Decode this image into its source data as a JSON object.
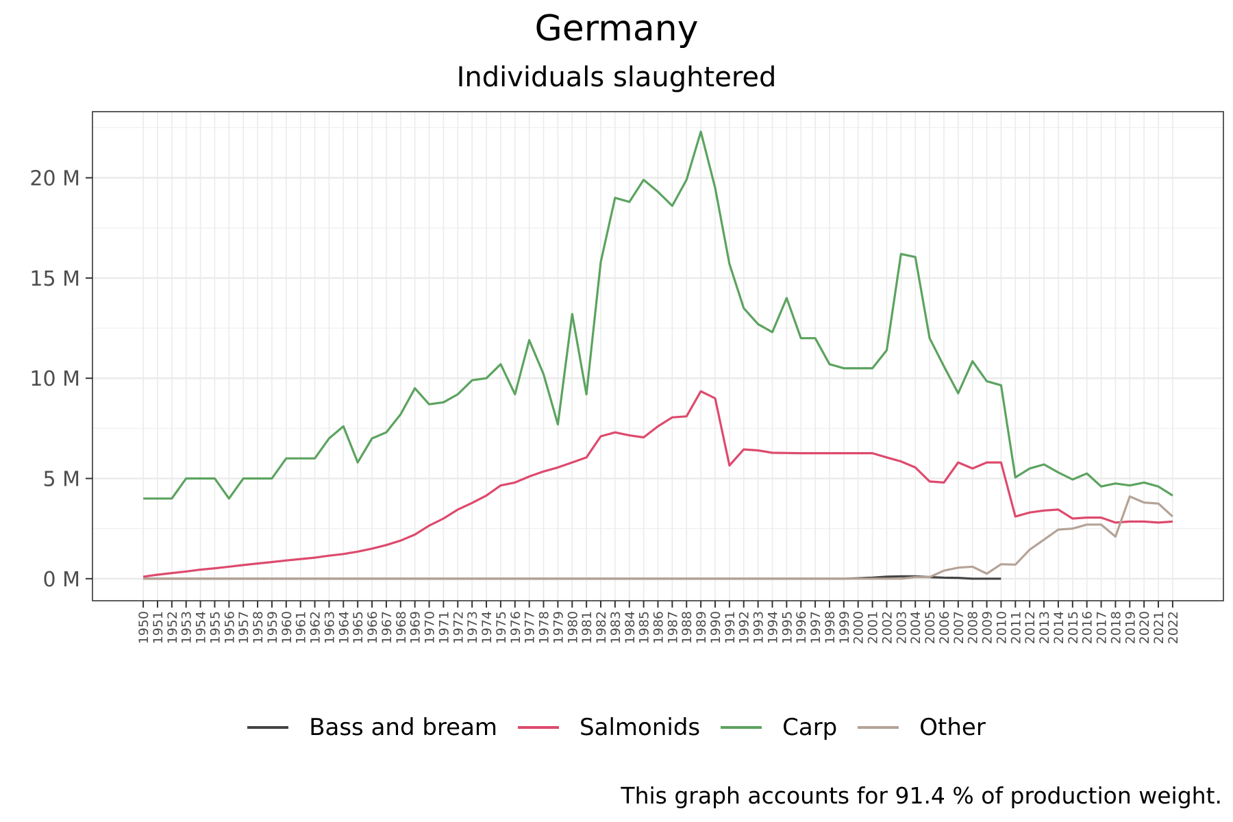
{
  "chart_data": {
    "type": "line",
    "title": "Germany",
    "subtitle": "Individuals slaughtered",
    "caption": "This graph accounts for 91.4 % of production weight.",
    "ylim": [
      -1.1,
      23.3
    ],
    "yticks": [
      0,
      5,
      10,
      15,
      20
    ],
    "ytick_labels": [
      "0 M",
      "5 M",
      "10 M",
      "15 M",
      "20 M"
    ],
    "grid": true,
    "legend_position": "bottom",
    "x": [
      1950,
      1951,
      1952,
      1953,
      1954,
      1955,
      1956,
      1957,
      1958,
      1959,
      1960,
      1961,
      1962,
      1963,
      1964,
      1965,
      1966,
      1967,
      1968,
      1969,
      1970,
      1971,
      1972,
      1973,
      1974,
      1975,
      1976,
      1977,
      1978,
      1979,
      1980,
      1981,
      1982,
      1983,
      1984,
      1985,
      1986,
      1987,
      1988,
      1989,
      1990,
      1991,
      1992,
      1993,
      1994,
      1995,
      1996,
      1997,
      1998,
      1999,
      2000,
      2001,
      2002,
      2003,
      2004,
      2005,
      2006,
      2007,
      2008,
      2009,
      2010,
      2011,
      2012,
      2013,
      2014,
      2015,
      2016,
      2017,
      2018,
      2019,
      2020,
      2021,
      2022
    ],
    "series": [
      {
        "name": "Bass and bream",
        "color": "#444444",
        "x": [
          1950,
          1951,
          1952,
          1953,
          1954,
          1955,
          1956,
          1957,
          1958,
          1959,
          1960,
          1961,
          1962,
          1963,
          1964,
          1965,
          1966,
          1967,
          1968,
          1969,
          1970,
          1971,
          1972,
          1973,
          1974,
          1975,
          1976,
          1977,
          1978,
          1979,
          1980,
          1981,
          1982,
          1983,
          1984,
          1985,
          1986,
          1987,
          1988,
          1989,
          1990,
          1991,
          1992,
          1993,
          1994,
          1995,
          1996,
          1997,
          1998,
          1999,
          2000,
          2001,
          2002,
          2003,
          2004,
          2005,
          2006,
          2007,
          2008,
          2009,
          2010
        ],
        "values": [
          0,
          0,
          0,
          0,
          0,
          0,
          0,
          0,
          0,
          0,
          0,
          0,
          0,
          0,
          0,
          0,
          0,
          0,
          0,
          0,
          0,
          0,
          0,
          0,
          0,
          0,
          0,
          0,
          0,
          0,
          0,
          0,
          0,
          0,
          0,
          0,
          0,
          0,
          0,
          0,
          0,
          0,
          0,
          0,
          0,
          0,
          0,
          0,
          0,
          0,
          0.02,
          0.05,
          0.1,
          0.12,
          0.12,
          0.08,
          0.05,
          0.04,
          0.0,
          0.0,
          0.0
        ]
      },
      {
        "name": "Salmonids",
        "color": "#dd4a6d",
        "x": [
          1950,
          1951,
          1952,
          1953,
          1954,
          1955,
          1956,
          1957,
          1958,
          1959,
          1960,
          1961,
          1962,
          1963,
          1964,
          1965,
          1966,
          1967,
          1968,
          1969,
          1970,
          1971,
          1972,
          1973,
          1974,
          1975,
          1976,
          1977,
          1978,
          1979,
          1980,
          1981,
          1982,
          1983,
          1984,
          1985,
          1986,
          1987,
          1988,
          1989,
          1990,
          1991,
          1992,
          1993,
          1994,
          1995,
          1996,
          1997,
          1998,
          1999,
          2000,
          2001,
          2002,
          2003,
          2004,
          2005,
          2006,
          2007,
          2008,
          2009,
          2010,
          2011,
          2012,
          2013,
          2014,
          2015,
          2016,
          2017,
          2018,
          2019,
          2020,
          2021,
          2022
        ],
        "values": [
          0.1,
          0.2,
          0.28,
          0.36,
          0.45,
          0.52,
          0.6,
          0.68,
          0.76,
          0.83,
          0.91,
          0.98,
          1.05,
          1.15,
          1.23,
          1.35,
          1.5,
          1.68,
          1.9,
          2.2,
          2.65,
          3.0,
          3.45,
          3.78,
          4.15,
          4.65,
          4.8,
          5.1,
          5.35,
          5.55,
          5.8,
          6.05,
          7.1,
          7.3,
          7.15,
          7.05,
          7.6,
          8.05,
          8.1,
          9.35,
          9.0,
          5.65,
          6.45,
          6.4,
          6.28,
          6.27,
          6.26,
          6.26,
          6.26,
          6.26,
          6.26,
          6.26,
          6.05,
          5.85,
          5.55,
          4.85,
          4.8,
          5.8,
          5.5,
          5.8,
          5.8,
          3.1,
          3.3,
          3.4,
          3.45,
          3.0,
          3.05,
          3.05,
          2.8,
          2.85,
          2.85,
          2.8,
          2.85
        ]
      },
      {
        "name": "Carp",
        "color": "#5ca35f",
        "x": [
          1950,
          1951,
          1952,
          1953,
          1954,
          1955,
          1956,
          1957,
          1958,
          1959,
          1960,
          1961,
          1962,
          1963,
          1964,
          1965,
          1966,
          1967,
          1968,
          1969,
          1970,
          1971,
          1972,
          1973,
          1974,
          1975,
          1976,
          1977,
          1978,
          1979,
          1980,
          1981,
          1982,
          1983,
          1984,
          1985,
          1986,
          1987,
          1988,
          1989,
          1990,
          1991,
          1992,
          1993,
          1994,
          1995,
          1996,
          1997,
          1998,
          1999,
          2000,
          2001,
          2002,
          2003,
          2004,
          2005,
          2006,
          2007,
          2008,
          2009,
          2010,
          2011,
          2012,
          2013,
          2014,
          2015,
          2016,
          2017,
          2018,
          2019,
          2020,
          2021,
          2022
        ],
        "values": [
          4.0,
          4.0,
          4.0,
          5.0,
          5.0,
          5.0,
          4.0,
          5.0,
          5.0,
          5.0,
          6.0,
          6.0,
          6.0,
          7.0,
          7.6,
          5.8,
          7.0,
          7.3,
          8.2,
          9.5,
          8.7,
          8.8,
          9.2,
          9.9,
          10.0,
          10.7,
          9.2,
          11.9,
          10.2,
          7.7,
          13.2,
          9.2,
          15.8,
          19.0,
          18.8,
          19.9,
          19.3,
          18.6,
          19.9,
          22.3,
          19.5,
          15.7,
          13.5,
          12.7,
          12.3,
          14.0,
          12.0,
          12.0,
          10.7,
          10.5,
          10.5,
          10.5,
          11.4,
          16.2,
          16.05,
          12.0,
          10.6,
          9.25,
          10.85,
          9.85,
          9.65,
          5.05,
          5.5,
          5.7,
          5.3,
          4.95,
          5.25,
          4.6,
          4.75,
          4.65,
          4.8,
          4.6,
          4.15
        ]
      },
      {
        "name": "Other",
        "color": "#b5a397",
        "x": [
          1950,
          1951,
          1952,
          1953,
          1954,
          1955,
          1956,
          1957,
          1958,
          1959,
          1960,
          1961,
          1962,
          1963,
          1964,
          1965,
          1966,
          1967,
          1968,
          1969,
          1970,
          1971,
          1972,
          1973,
          1974,
          1975,
          1976,
          1977,
          1978,
          1979,
          1980,
          1981,
          1982,
          1983,
          1984,
          1985,
          1986,
          1987,
          1988,
          1989,
          1990,
          1991,
          1992,
          1993,
          1994,
          1995,
          1996,
          1997,
          1998,
          1999,
          2000,
          2001,
          2002,
          2003,
          2004,
          2005,
          2006,
          2007,
          2008,
          2009,
          2010,
          2011,
          2012,
          2013,
          2014,
          2015,
          2016,
          2017,
          2018,
          2019,
          2020,
          2021,
          2022
        ],
        "values": [
          0,
          0,
          0,
          0,
          0,
          0,
          0,
          0,
          0,
          0,
          0,
          0,
          0,
          0,
          0,
          0,
          0,
          0,
          0,
          0,
          0,
          0,
          0,
          0,
          0,
          0,
          0,
          0,
          0,
          0,
          0,
          0,
          0,
          0,
          0,
          0,
          0,
          0,
          0,
          0,
          0,
          0,
          0,
          0,
          0,
          0,
          0,
          0,
          0,
          0,
          0,
          0,
          0,
          0,
          0.08,
          0.08,
          0.4,
          0.55,
          0.6,
          0.25,
          0.72,
          0.7,
          1.45,
          1.95,
          2.45,
          2.5,
          2.7,
          2.7,
          2.1,
          4.1,
          3.8,
          3.75,
          3.1
        ]
      }
    ]
  }
}
